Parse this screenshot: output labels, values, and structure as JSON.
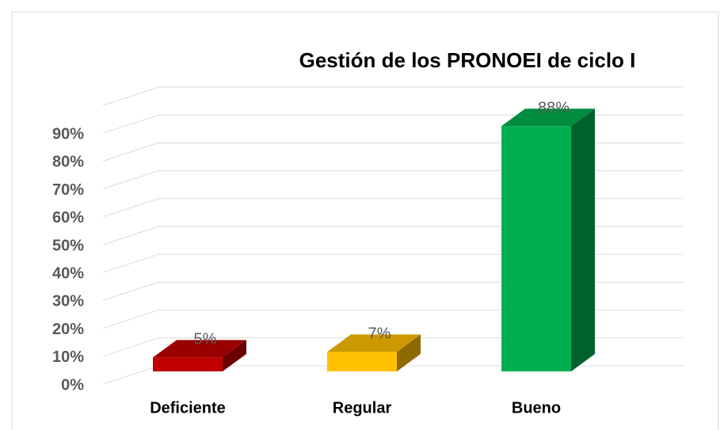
{
  "chart_data": {
    "type": "bar3d",
    "title": "Gestión de los PRONOEI de ciclo I",
    "categories": [
      "Deficiente",
      "Regular",
      "Bueno"
    ],
    "values": [
      5,
      7,
      88
    ],
    "value_labels": [
      "5%",
      "7%",
      "88%"
    ],
    "colors": [
      "#c00000",
      "#ffc000",
      "#00b050"
    ],
    "ylim": [
      0,
      100
    ],
    "yticks": [
      {
        "value": 0,
        "label": "0%"
      },
      {
        "value": 10,
        "label": "10%"
      },
      {
        "value": 20,
        "label": "20%"
      },
      {
        "value": 30,
        "label": "30%"
      },
      {
        "value": 40,
        "label": "40%"
      },
      {
        "value": 50,
        "label": "50%"
      },
      {
        "value": 60,
        "label": "60%"
      },
      {
        "value": 70,
        "label": "70%"
      },
      {
        "value": 80,
        "label": "80%"
      },
      {
        "value": 90,
        "label": "90%"
      }
    ],
    "grid": true
  }
}
